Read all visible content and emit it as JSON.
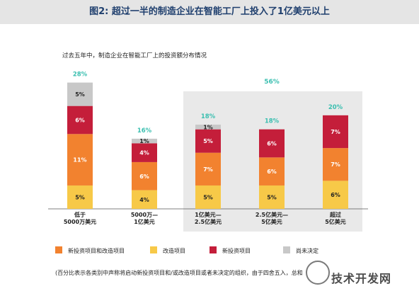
{
  "title": "图2: 超过一半的制造企业在智能工厂上投入了1亿美元以上",
  "chart_data": {
    "type": "bar",
    "stacked": true,
    "subtitle": "过去五年中，制造企业在智能工厂上的投资额分布情况",
    "categories": [
      [
        "低于",
        "5000万美元"
      ],
      [
        "5000万—",
        "1亿美元"
      ],
      [
        "1亿美元—",
        "2.5亿美元"
      ],
      [
        "2.5亿美元—",
        "5亿美元"
      ],
      [
        "超过",
        "5亿美元"
      ]
    ],
    "series": [
      {
        "name": "改造项目",
        "color": "#f7c948",
        "values": [
          5,
          4,
          5,
          5,
          6
        ],
        "labels": [
          "5%",
          "4%",
          "5%",
          "5%",
          "6%"
        ]
      },
      {
        "name": "新投资项目和改造项目",
        "color": "#f2822f",
        "values": [
          11,
          6,
          7,
          6,
          7
        ],
        "labels": [
          "11%",
          "6%",
          "7%",
          "6%",
          "7%"
        ]
      },
      {
        "name": "新投资项目",
        "color": "#c41e3a",
        "values": [
          6,
          4,
          5,
          6,
          7
        ],
        "labels": [
          "6%",
          "4%",
          "5%",
          "6%",
          "7%"
        ]
      },
      {
        "name": "尚未决定",
        "color": "#c8c8c8",
        "values": [
          5,
          1,
          1,
          0,
          0
        ],
        "labels": [
          "5%",
          "1%",
          "1%",
          "",
          ""
        ]
      }
    ],
    "totals": [
      "28%",
      "16%",
      "18%",
      "18%",
      "20%"
    ],
    "group_total": {
      "label": "56%",
      "applies_to_categories": [
        2,
        3,
        4
      ]
    },
    "total_color": "#3bbfb0",
    "ylim": [
      0,
      28
    ]
  },
  "legend": [
    {
      "label": "新投资项目和改造项目",
      "color": "#f2822f"
    },
    {
      "label": "改造项目",
      "color": "#f7c948"
    },
    {
      "label": "新投资项目",
      "color": "#c41e3a"
    },
    {
      "label": "尚未决定",
      "color": "#c8c8c8"
    }
  ],
  "footnote": "(百分比表示各类别中声称将启动新投资项目和/或改造项目或者未决定的组织，由于四舍五入，总和",
  "watermark": "技术开发网"
}
